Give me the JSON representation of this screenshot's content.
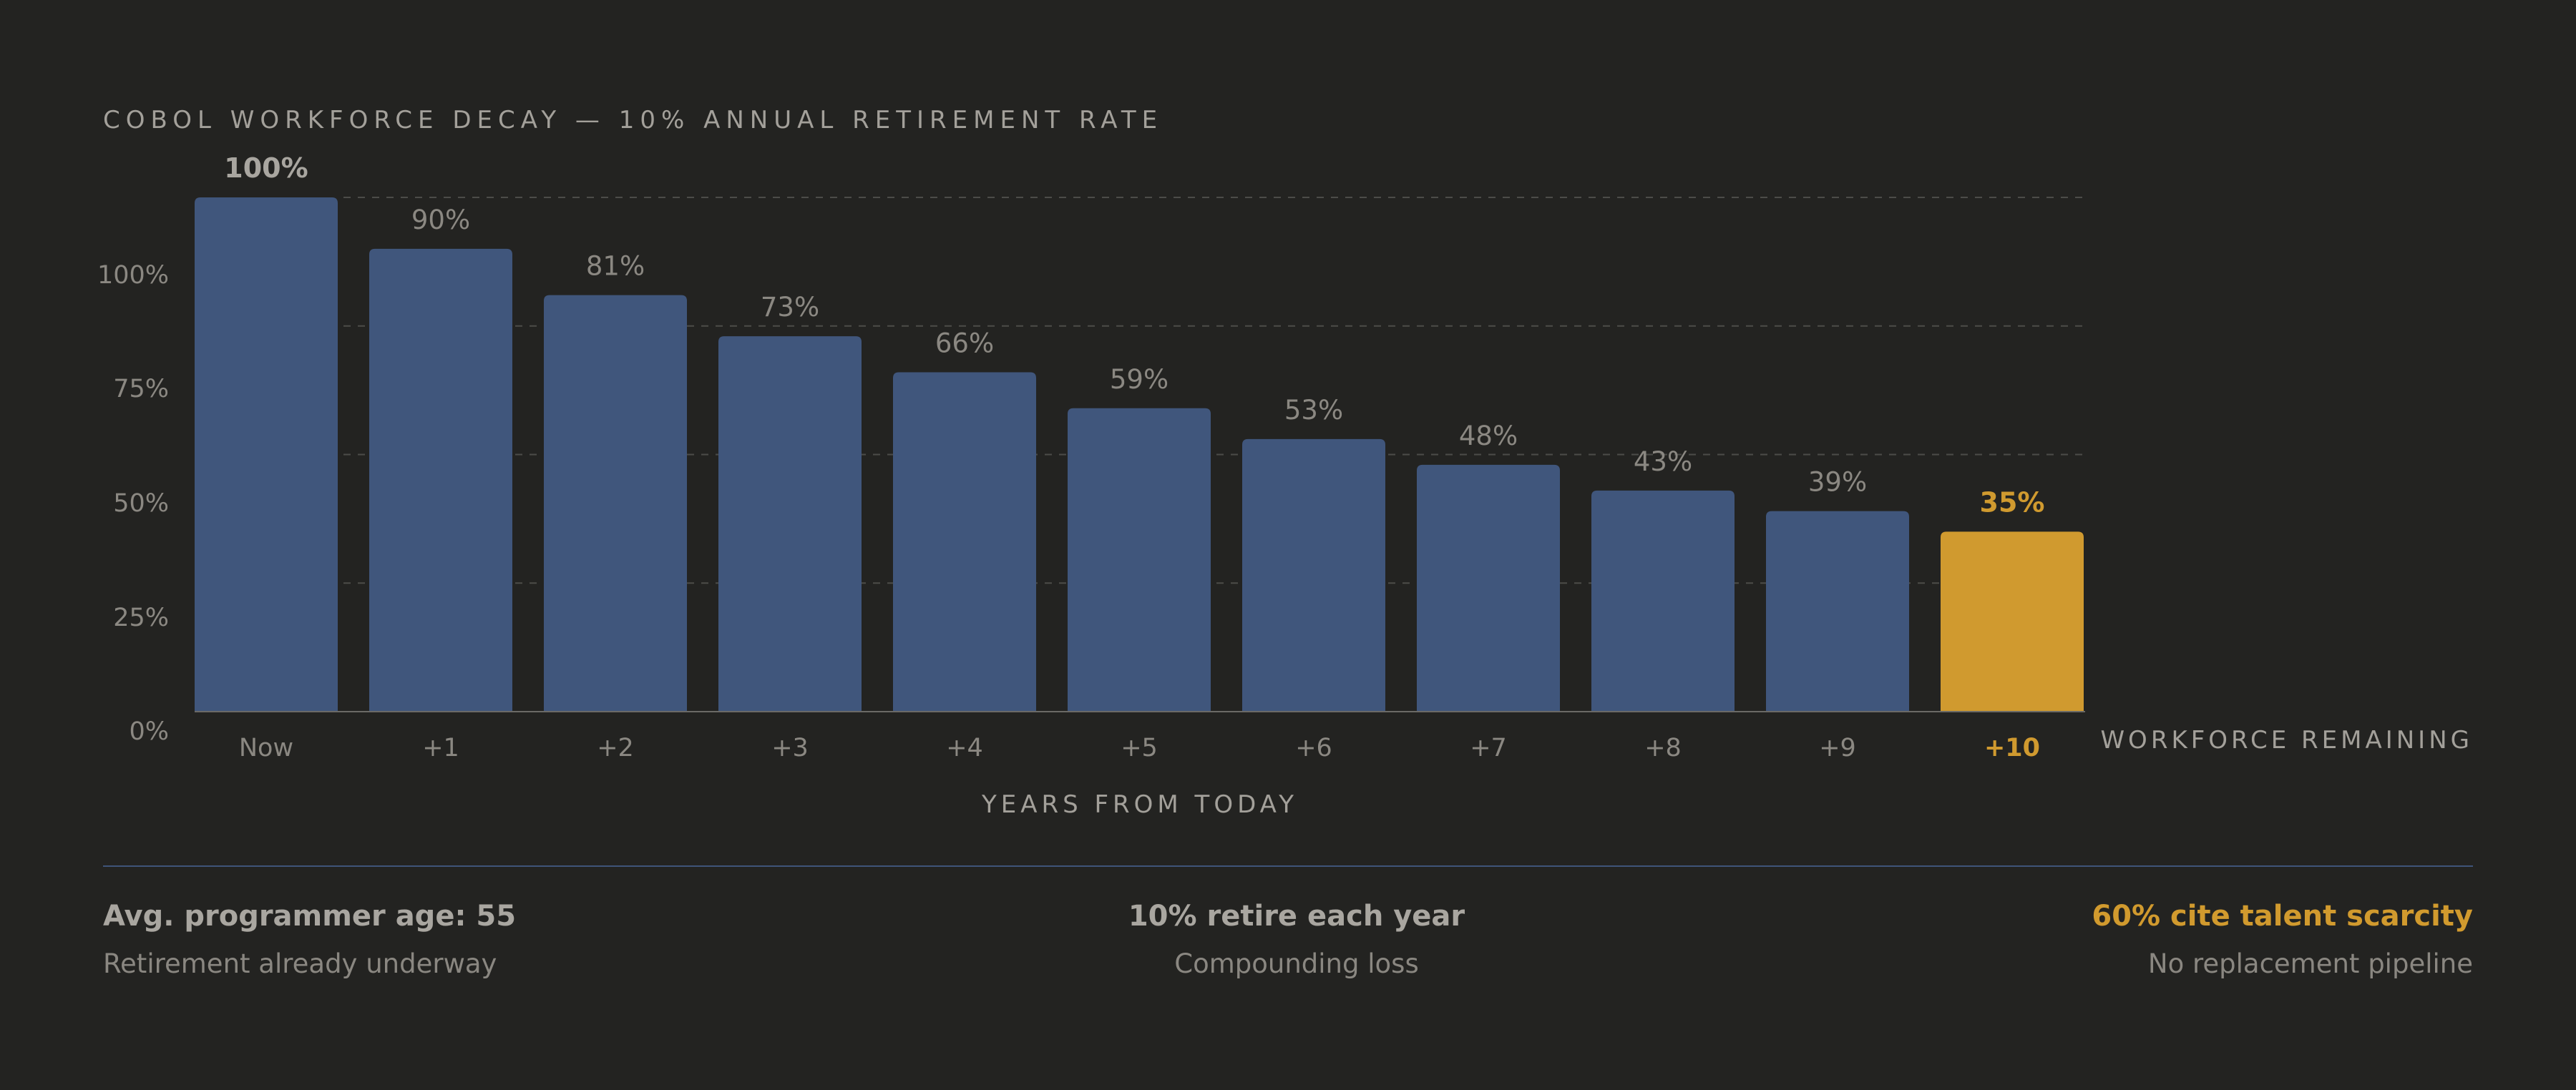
{
  "chart_data": {
    "type": "bar",
    "title": "COBOL WORKFORCE DECAY — 10% ANNUAL RETIREMENT RATE",
    "xlabel": "YEARS FROM TODAY",
    "ylabel": "WORKFORCE REMAINING",
    "categories": [
      "Now",
      "+1",
      "+2",
      "+3",
      "+4",
      "+5",
      "+6",
      "+7",
      "+8",
      "+9",
      "+10"
    ],
    "values": [
      100,
      90,
      81,
      73,
      66,
      59,
      53,
      48,
      43,
      39,
      35
    ],
    "value_labels": [
      "100%",
      "90%",
      "81%",
      "73%",
      "66%",
      "59%",
      "53%",
      "48%",
      "43%",
      "39%",
      "35%"
    ],
    "y_ticks": [
      0,
      25,
      50,
      75,
      100
    ],
    "y_tick_labels": [
      "0%",
      "25%",
      "50%",
      "75%",
      "100%"
    ],
    "ylim": [
      0,
      100
    ],
    "highlight_index": 10,
    "grid": "horizontal-dashed",
    "colors": {
      "bar": "#40567c",
      "highlight": "#d09a2f",
      "background": "#232321",
      "text": "#9a9791",
      "grid": "#4c4c49"
    }
  },
  "stats": [
    {
      "title": "Avg. programmer age: 55",
      "subtitle": "Retirement already underway"
    },
    {
      "title": "10% retire each year",
      "subtitle": "Compounding loss"
    },
    {
      "title": "60% cite talent scarcity",
      "subtitle": "No replacement pipeline"
    }
  ]
}
